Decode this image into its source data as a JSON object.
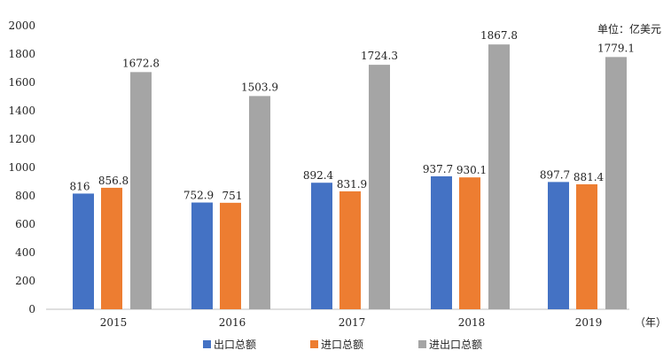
{
  "chart_data": {
    "type": "bar",
    "title": "",
    "unit_label": "单位：亿美元",
    "x_unit_label": "（年）",
    "categories": [
      "2015",
      "2016",
      "2017",
      "2018",
      "2019"
    ],
    "series": [
      {
        "name": "出口总额",
        "color": "#4472C4",
        "values": [
          816,
          752.9,
          892.4,
          937.7,
          897.7
        ],
        "labels": [
          "816",
          "752.9",
          "892.4",
          "937.7",
          "897.7"
        ]
      },
      {
        "name": "进口总额",
        "color": "#ED7D31",
        "values": [
          856.8,
          751,
          831.9,
          930.1,
          881.4
        ],
        "labels": [
          "856.8",
          "751",
          "831.9",
          "930.1",
          "881.4"
        ]
      },
      {
        "name": "进出口总额",
        "color": "#A5A5A5",
        "values": [
          1672.8,
          1503.9,
          1724.3,
          1867.8,
          1779.1
        ],
        "labels": [
          "1672.8",
          "1503.9",
          "1724.3",
          "1867.8",
          "1779.1"
        ]
      }
    ],
    "ylim": [
      0,
      2000
    ],
    "yticks": [
      "0",
      "200",
      "400",
      "600",
      "800",
      "1000",
      "1200",
      "1400",
      "1600",
      "1800",
      "2000"
    ],
    "grid": false,
    "legend_position": "bottom"
  }
}
